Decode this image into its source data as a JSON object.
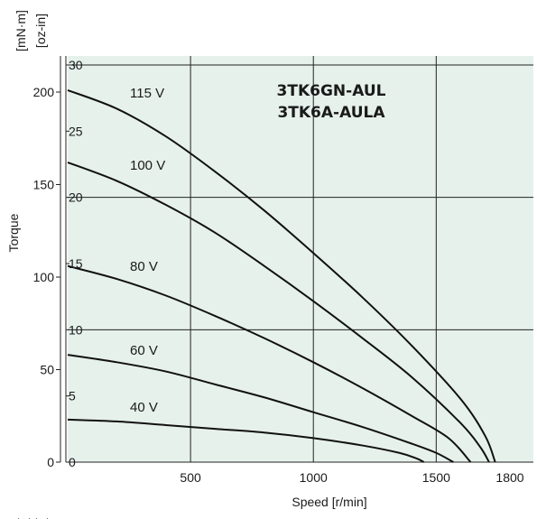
{
  "chart_data": {
    "type": "line",
    "title_lines": [
      "3TK6GN-AUL",
      "3TK6A-AULA"
    ],
    "xlabel": "Speed [r/min]",
    "ylabel": "Torque",
    "y_units": {
      "left": "[mN·m]",
      "right": "[oz-in]"
    },
    "x_units_stub": "[",
    "xlim": [
      0,
      1800
    ],
    "x_ticks": [
      "500",
      "1000",
      "1500",
      "1800"
    ],
    "ylim_mNm": [
      0,
      230
    ],
    "y_ticks_mNm": [
      "0",
      "50",
      "100",
      "150",
      "200"
    ],
    "y_ticks_ozin": [
      "0",
      "5",
      "10",
      "15",
      "20",
      "25",
      "30"
    ],
    "grid": true,
    "background_color": "#e6f1ec",
    "line_color": "#111111",
    "series": [
      {
        "name": "115 V",
        "x": [
          0,
          200,
          400,
          600,
          800,
          1000,
          1200,
          1400,
          1600,
          1700,
          1740
        ],
        "y_mNm": [
          201,
          191,
          176,
          157,
          136,
          113,
          89,
          63,
          34,
          14,
          0
        ]
      },
      {
        "name": "100 V",
        "x": [
          0,
          200,
          400,
          600,
          800,
          1000,
          1200,
          1400,
          1600,
          1680,
          1715
        ],
        "y_mNm": [
          162,
          152,
          139,
          124,
          106,
          87,
          67,
          46,
          21,
          8,
          0
        ]
      },
      {
        "name": "80 V",
        "x": [
          0,
          200,
          400,
          600,
          800,
          1000,
          1200,
          1400,
          1550,
          1640
        ],
        "y_mNm": [
          106,
          99,
          90,
          79,
          67,
          54,
          40,
          25,
          13,
          0
        ]
      },
      {
        "name": "60 V",
        "x": [
          0,
          200,
          400,
          600,
          800,
          1000,
          1200,
          1400,
          1500,
          1570
        ],
        "y_mNm": [
          58,
          54,
          49,
          42,
          35,
          27,
          19,
          10,
          5,
          0
        ]
      },
      {
        "name": "40 V",
        "x": [
          0,
          200,
          400,
          600,
          800,
          1000,
          1200,
          1350,
          1420,
          1450
        ],
        "y_mNm": [
          23,
          22,
          20,
          18,
          16,
          13,
          9,
          5,
          2,
          0
        ]
      }
    ]
  }
}
